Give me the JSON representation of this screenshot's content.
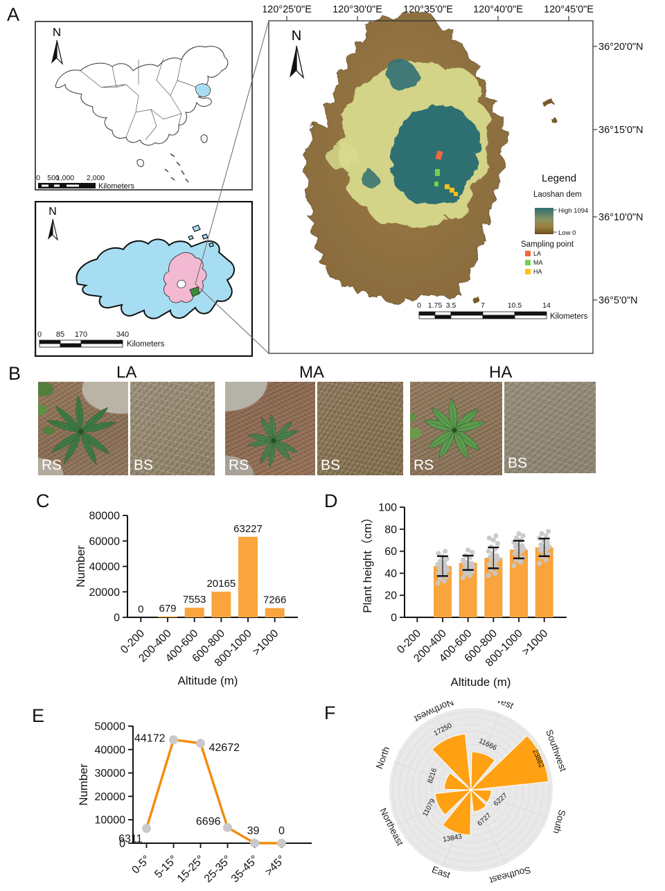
{
  "panels": {
    "A": "A",
    "B": "B",
    "C": "C",
    "D": "D",
    "E": "E",
    "F": "F"
  },
  "panelA": {
    "north_label": "N",
    "lon_labels": [
      "120°25'0\"E",
      "120°30'0\"E",
      "120°35'0\"E",
      "120°40'0\"E",
      "120°45'0\"E"
    ],
    "lat_labels": [
      "36°20'0\"N",
      "36°15'0\"N",
      "36°10'0\"N",
      "36°5'0\"N"
    ],
    "china_inset": {
      "scale_ticks": [
        "0",
        "500",
        "1,000",
        "2,000"
      ],
      "scale_unit": "Kilometers",
      "highlight_color": "#a7ddf2"
    },
    "shandong_inset": {
      "scale_ticks": [
        "0",
        "85",
        "170",
        "340"
      ],
      "scale_unit": "Kilometers",
      "province_color": "#a7ddf2",
      "qingdao_color": "#f3b9d2",
      "laoshan_color": "#3f8a3f"
    },
    "dem_map": {
      "scale_ticks": [
        "0",
        "1.75",
        "3.5",
        "7",
        "10.5",
        "14"
      ],
      "scale_unit": "Kilometers",
      "legend": {
        "title": "Legend",
        "layer": "Laoshan dem",
        "high_label": "High 1094",
        "low_label": "Low 0",
        "sampling_title": "Sampling point",
        "points": [
          {
            "label": "LA",
            "color": "#f0683c"
          },
          {
            "label": "MA",
            "color": "#6fd34f"
          },
          {
            "label": "HA",
            "color": "#ffc019"
          }
        ]
      },
      "elevation_colors": {
        "low_brown": "#8a6c3e",
        "mid_yellow": "#d7d98c",
        "high_teal": "#2f6f72"
      }
    }
  },
  "panelB": {
    "groups": [
      "LA",
      "MA",
      "HA"
    ],
    "photos": [
      {
        "group": "LA",
        "tag": "RS"
      },
      {
        "group": "LA",
        "tag": "BS"
      },
      {
        "group": "MA",
        "tag": "RS"
      },
      {
        "group": "MA",
        "tag": "BS"
      },
      {
        "group": "HA",
        "tag": "RS"
      },
      {
        "group": "HA",
        "tag": "BS"
      }
    ]
  },
  "chart_data": [
    {
      "id": "C",
      "type": "bar",
      "categories": [
        "0-200",
        "200-400",
        "400-600",
        "600-800",
        "800-1000",
        ">1000"
      ],
      "values": [
        0,
        679,
        7553,
        20165,
        63227,
        7266
      ],
      "value_labels": [
        "0",
        "679",
        "7553",
        "20165",
        "63227",
        "7266"
      ],
      "xlabel": "Altitude (m)",
      "ylabel": "Number",
      "ylim": [
        0,
        80000
      ],
      "yticks": [
        0,
        20000,
        40000,
        60000,
        80000
      ],
      "ytick_labels": [
        "0",
        "20000",
        "40000",
        "60000",
        "80000"
      ],
      "bar_color": "#f9a43c"
    },
    {
      "id": "D",
      "type": "bar-scatter",
      "categories": [
        "0-200",
        "200-400",
        "400-600",
        "600-800",
        "800-1000",
        ">1000"
      ],
      "means": [
        0,
        46.5,
        49.5,
        54,
        61.5,
        63.5
      ],
      "sd": [
        0,
        9,
        6.5,
        9.5,
        8,
        8
      ],
      "dots": [
        [],
        [
          31,
          33,
          35,
          37,
          38,
          40,
          41,
          42,
          43,
          44,
          45,
          46,
          47,
          48,
          50,
          51,
          53,
          55,
          58,
          60
        ],
        [
          36,
          38,
          40,
          41,
          42,
          43,
          44,
          45,
          46,
          47,
          48,
          49,
          50,
          52,
          54,
          56,
          59,
          61
        ],
        [
          38,
          40,
          43,
          45,
          47,
          48,
          50,
          52,
          53,
          54,
          55,
          56,
          58,
          60,
          62,
          64,
          67,
          70,
          72,
          74
        ],
        [
          47,
          50,
          52,
          54,
          56,
          58,
          60,
          61,
          62,
          63,
          64,
          65,
          66,
          68,
          70,
          72,
          74,
          76
        ],
        [
          49,
          52,
          55,
          57,
          59,
          61,
          62,
          63,
          64,
          65,
          66,
          68,
          70,
          72,
          74,
          76,
          78
        ]
      ],
      "xlabel": "Altitude (m)",
      "ylabel": "Plant height（cm）",
      "ylim": [
        0,
        100
      ],
      "yticks": [
        0,
        20,
        40,
        60,
        80,
        100
      ],
      "ytick_labels": [
        "0",
        "20",
        "40",
        "60",
        "80",
        "100"
      ],
      "bar_color": "#f9a43c",
      "dot_color": "#c8c8c8",
      "error_color": "#111111"
    },
    {
      "id": "E",
      "type": "line",
      "categories": [
        "0-5°",
        "5-15°",
        "15-25°",
        "25-35°",
        "35-45°",
        ">45°"
      ],
      "values": [
        6311,
        44172,
        42672,
        6696,
        39,
        0
      ],
      "value_labels": [
        "6311",
        "44172",
        "42672",
        "6696",
        "39",
        "0"
      ],
      "xlabel": "",
      "ylabel": "Number",
      "ylim": [
        0,
        50000
      ],
      "yticks": [
        0,
        10000,
        20000,
        30000,
        40000,
        50000
      ],
      "ytick_labels": [
        "0",
        "10000",
        "20000",
        "30000",
        "40000",
        "50000"
      ],
      "line_color": "#f28c0f",
      "marker_color": "#c9c9c9"
    },
    {
      "id": "F",
      "type": "rose",
      "rmax": 24000,
      "ring_step": 2000,
      "sectors": [
        {
          "dir": "Southwest",
          "value": 23882,
          "angle": 25
        },
        {
          "dir": "West",
          "value": 11666,
          "angle": 70
        },
        {
          "dir": "Northwest",
          "value": 17250,
          "angle": 115
        },
        {
          "dir": "North",
          "value": 8216,
          "angle": 160
        },
        {
          "dir": "Northeast",
          "value": 11079,
          "angle": 205
        },
        {
          "dir": "East",
          "value": 13843,
          "angle": 250
        },
        {
          "dir": "Southeast",
          "value": 6727,
          "angle": 295
        },
        {
          "dir": "South",
          "value": 6227,
          "angle": 340
        }
      ],
      "wedge_color": "#ffa113",
      "bg_color": "#e9e9e9",
      "grid_color": "#d9d9d9"
    }
  ]
}
